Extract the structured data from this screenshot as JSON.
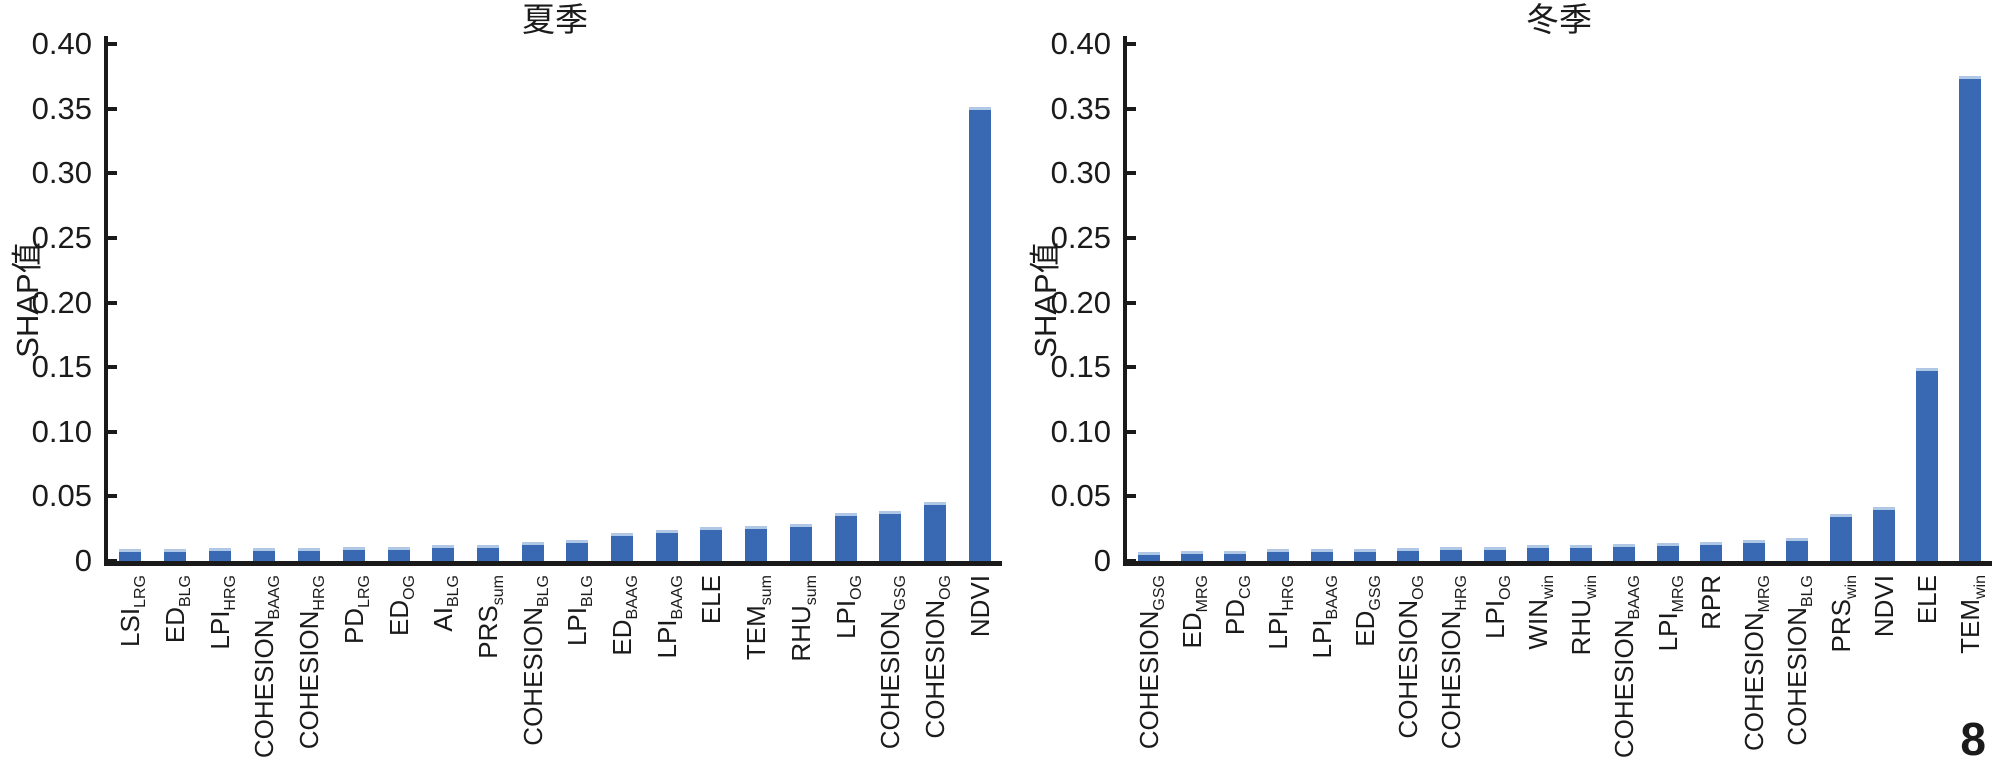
{
  "figure": {
    "page_number": "8",
    "bar_color": "#3a69b4",
    "bar_cap_color": "#b0c7e6",
    "axis_color": "#1a1a1a",
    "text_color": "#1b1b1b"
  },
  "chart_data": [
    {
      "type": "bar",
      "title": "夏季",
      "ylabel": "SHAP值",
      "xlabel": "",
      "ylim": [
        0,
        0.4
      ],
      "grid": false,
      "legend": null,
      "yticks": [
        0,
        0.05,
        0.1,
        0.15,
        0.2,
        0.25,
        0.3,
        0.35,
        0.4
      ],
      "ytick_labels": [
        "0",
        "0.05",
        "0.10",
        "0.15",
        "0.20",
        "0.25",
        "0.30",
        "0.35",
        "0.40"
      ],
      "categories": [
        {
          "main": "LSI",
          "sub": "LRG"
        },
        {
          "main": "ED",
          "sub": "BLG"
        },
        {
          "main": "LPI",
          "sub": "HRG"
        },
        {
          "main": "COHESION",
          "sub": "BAAG"
        },
        {
          "main": "COHESION",
          "sub": "HRG"
        },
        {
          "main": "PD",
          "sub": "LRG"
        },
        {
          "main": "ED",
          "sub": "OG"
        },
        {
          "main": "AI",
          "sub": "BLG"
        },
        {
          "main": "PRS",
          "sub": "sum"
        },
        {
          "main": "COHESION",
          "sub": "BLG"
        },
        {
          "main": "LPI",
          "sub": "BLG"
        },
        {
          "main": "ED",
          "sub": "BAAG"
        },
        {
          "main": "LPI",
          "sub": "BAAG"
        },
        {
          "main": "ELE",
          "sub": ""
        },
        {
          "main": "TEM",
          "sub": "sum"
        },
        {
          "main": "RHU",
          "sub": "sum"
        },
        {
          "main": "LPI",
          "sub": "OG"
        },
        {
          "main": "COHESION",
          "sub": "GSG"
        },
        {
          "main": "COHESION",
          "sub": "OG"
        },
        {
          "main": "NDVI",
          "sub": ""
        }
      ],
      "values": [
        0.009,
        0.009,
        0.01,
        0.01,
        0.01,
        0.011,
        0.011,
        0.012,
        0.012,
        0.015,
        0.016,
        0.022,
        0.024,
        0.026,
        0.027,
        0.029,
        0.037,
        0.039,
        0.046,
        0.351
      ]
    },
    {
      "type": "bar",
      "title": "冬季",
      "ylabel": "SHAP值",
      "xlabel": "",
      "ylim": [
        0,
        0.4
      ],
      "grid": false,
      "legend": null,
      "yticks": [
        0,
        0.05,
        0.1,
        0.15,
        0.2,
        0.25,
        0.3,
        0.35,
        0.4
      ],
      "ytick_labels": [
        "0",
        "0.05",
        "0.10",
        "0.15",
        "0.20",
        "0.25",
        "0.30",
        "0.35",
        "0.40"
      ],
      "categories": [
        {
          "main": "COHESION",
          "sub": "GSG"
        },
        {
          "main": "ED",
          "sub": "MRG"
        },
        {
          "main": "PD",
          "sub": "CG"
        },
        {
          "main": "LPI",
          "sub": "HRG"
        },
        {
          "main": "LPI",
          "sub": "BAAG"
        },
        {
          "main": "ED",
          "sub": "GSG"
        },
        {
          "main": "COHESION",
          "sub": "OG"
        },
        {
          "main": "COHESION",
          "sub": "HRG"
        },
        {
          "main": "LPI",
          "sub": "OG"
        },
        {
          "main": "WIN",
          "sub": "win"
        },
        {
          "main": "RHU",
          "sub": "win"
        },
        {
          "main": "COHESION",
          "sub": "BAAG"
        },
        {
          "main": "LPI",
          "sub": "MRG"
        },
        {
          "main": "RPR",
          "sub": ""
        },
        {
          "main": "COHESION",
          "sub": "MRG"
        },
        {
          "main": "COHESION",
          "sub": "BLG"
        },
        {
          "main": "PRS",
          "sub": "win"
        },
        {
          "main": "NDVI",
          "sub": ""
        },
        {
          "main": "ELE",
          "sub": ""
        },
        {
          "main": "TEM",
          "sub": "win"
        }
      ],
      "values": [
        0.007,
        0.008,
        0.008,
        0.009,
        0.009,
        0.009,
        0.01,
        0.011,
        0.011,
        0.012,
        0.012,
        0.013,
        0.014,
        0.015,
        0.016,
        0.018,
        0.036,
        0.042,
        0.149,
        0.375
      ]
    }
  ]
}
